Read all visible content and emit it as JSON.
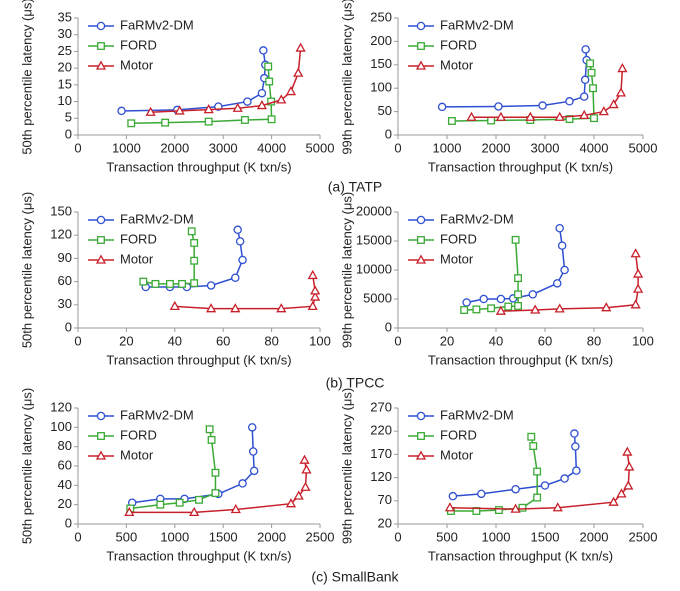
{
  "captions": [
    "(a) TATP",
    "(b) TPCC",
    "(c) SmallBank"
  ],
  "chart_data": [
    {
      "type": "line",
      "xlabel": "Transaction throughput (K txn/s)",
      "ylabel": "50th percentile latency (μs)",
      "xlim": [
        0,
        5000
      ],
      "xticks": [
        0,
        1000,
        2000,
        3000,
        4000,
        5000
      ],
      "ylim": [
        0,
        35
      ],
      "yticks": [
        0,
        5,
        10,
        15,
        20,
        25,
        30,
        35
      ],
      "legend": "upper left",
      "series": [
        {
          "name": "FaRMv2-DM",
          "color": "#2e4fd0",
          "marker": "circle",
          "x": [
            900,
            2050,
            2900,
            3500,
            3800,
            3850,
            3870,
            3830
          ],
          "values": [
            7.2,
            7.5,
            8.5,
            10,
            12.5,
            17,
            21,
            25.3
          ]
        },
        {
          "name": "FORD",
          "color": "#3aaa35",
          "marker": "square",
          "x": [
            1100,
            1800,
            2700,
            3450,
            4000,
            3990,
            3950,
            3930
          ],
          "values": [
            3.5,
            3.7,
            4,
            4.5,
            4.7,
            10,
            16,
            20.5
          ]
        },
        {
          "name": "Motor",
          "color": "#c8202a",
          "marker": "triangle",
          "x": [
            1500,
            2100,
            2700,
            3300,
            3800,
            4200,
            4400,
            4550,
            4600
          ],
          "values": [
            6.8,
            7.2,
            7.6,
            8,
            8.8,
            10.5,
            13,
            18.5,
            26
          ]
        }
      ]
    },
    {
      "type": "line",
      "xlabel": "Transaction throughput (K txn/s)",
      "ylabel": "99th percentile latency (μs)",
      "xlim": [
        0,
        5000
      ],
      "xticks": [
        0,
        1000,
        2000,
        3000,
        4000,
        5000
      ],
      "ylim": [
        0,
        250
      ],
      "yticks": [
        0,
        50,
        100,
        150,
        200,
        250
      ],
      "legend": "upper left",
      "series": [
        {
          "name": "FaRMv2-DM",
          "color": "#2e4fd0",
          "marker": "circle",
          "x": [
            900,
            2050,
            2950,
            3500,
            3800,
            3820,
            3850,
            3830
          ],
          "values": [
            60,
            61,
            63,
            72,
            82,
            118,
            160,
            183
          ]
        },
        {
          "name": "FORD",
          "color": "#3aaa35",
          "marker": "square",
          "x": [
            1100,
            1900,
            2700,
            3500,
            4000,
            3980,
            3950,
            3920
          ],
          "values": [
            30,
            31,
            32,
            34,
            36,
            100,
            133,
            153
          ]
        },
        {
          "name": "Motor",
          "color": "#c8202a",
          "marker": "triangle",
          "x": [
            1500,
            2100,
            2700,
            3300,
            3800,
            4200,
            4400,
            4550,
            4580
          ],
          "values": [
            38,
            38,
            38,
            38,
            42,
            50,
            65,
            90,
            142
          ]
        }
      ]
    },
    {
      "type": "line",
      "xlabel": "Transaction throughput (K txn/s)",
      "ylabel": "50th percentile latency (μs)",
      "xlim": [
        0,
        100
      ],
      "xticks": [
        0,
        20,
        40,
        60,
        80,
        100
      ],
      "ylim": [
        0,
        150
      ],
      "yticks": [
        0,
        30,
        60,
        90,
        120,
        150
      ],
      "legend": "upper left",
      "series": [
        {
          "name": "FaRMv2-DM",
          "color": "#2e4fd0",
          "marker": "circle",
          "x": [
            28,
            38,
            45,
            55,
            65,
            68,
            67,
            66
          ],
          "values": [
            53,
            53,
            53,
            55,
            65,
            88,
            112,
            127
          ]
        },
        {
          "name": "FORD",
          "color": "#3aaa35",
          "marker": "square",
          "x": [
            27,
            32,
            38,
            43,
            48,
            48,
            48,
            47
          ],
          "values": [
            60,
            57,
            57,
            57,
            58,
            87,
            110,
            125
          ]
        },
        {
          "name": "Motor",
          "color": "#c8202a",
          "marker": "triangle",
          "x": [
            40,
            55,
            65,
            84,
            97,
            98,
            98,
            97
          ],
          "values": [
            28,
            25,
            25,
            25,
            28,
            40,
            48,
            68
          ]
        }
      ]
    },
    {
      "type": "line",
      "xlabel": "Transaction throughput (K txn/s)",
      "ylabel": "99th percentile latency (μs)",
      "xlim": [
        0,
        100
      ],
      "xticks": [
        0,
        20,
        40,
        60,
        80,
        100
      ],
      "ylim": [
        0,
        20000
      ],
      "yticks": [
        0,
        5000,
        10000,
        15000,
        20000
      ],
      "legend": "upper left",
      "series": [
        {
          "name": "FaRMv2-DM",
          "color": "#2e4fd0",
          "marker": "circle",
          "x": [
            28,
            35,
            42,
            47,
            55,
            65,
            68,
            67,
            66
          ],
          "values": [
            4400,
            5000,
            5000,
            5100,
            5800,
            7700,
            10000,
            14200,
            17200
          ]
        },
        {
          "name": "FORD",
          "color": "#3aaa35",
          "marker": "square",
          "x": [
            27,
            32,
            38,
            45,
            49,
            49,
            49,
            48
          ],
          "values": [
            3100,
            3200,
            3400,
            3700,
            3800,
            5800,
            8600,
            15200
          ]
        },
        {
          "name": "Motor",
          "color": "#c8202a",
          "marker": "triangle",
          "x": [
            42,
            56,
            66,
            85,
            97,
            98,
            98,
            97
          ],
          "values": [
            2900,
            3100,
            3300,
            3500,
            4000,
            6700,
            9300,
            12800
          ]
        }
      ]
    },
    {
      "type": "line",
      "xlabel": "Transaction throughput (K txn/s)",
      "ylabel": "50th percentile latency (μs)",
      "xlim": [
        0,
        2500
      ],
      "xticks": [
        0,
        500,
        1000,
        1500,
        2000,
        2500
      ],
      "ylim": [
        0,
        120
      ],
      "yticks": [
        0,
        20,
        40,
        60,
        80,
        100,
        120
      ],
      "legend": "upper left",
      "series": [
        {
          "name": "FaRMv2-DM",
          "color": "#2e4fd0",
          "marker": "circle",
          "x": [
            560,
            850,
            1100,
            1450,
            1700,
            1820,
            1810,
            1800
          ],
          "values": [
            22,
            26,
            26,
            31,
            42,
            55,
            75,
            100
          ]
        },
        {
          "name": "FORD",
          "color": "#3aaa35",
          "marker": "square",
          "x": [
            540,
            850,
            1050,
            1250,
            1420,
            1420,
            1380,
            1360
          ],
          "values": [
            16,
            20,
            22,
            25,
            32,
            53,
            87,
            98
          ]
        },
        {
          "name": "Motor",
          "color": "#c8202a",
          "marker": "triangle",
          "x": [
            530,
            1200,
            1630,
            2200,
            2280,
            2350,
            2360,
            2340
          ],
          "values": [
            12,
            12,
            15,
            21,
            29,
            38,
            56,
            66
          ]
        }
      ]
    },
    {
      "type": "line",
      "xlabel": "Transaction throughput (K txn/s)",
      "ylabel": "99th percentile latency (μs)",
      "xlim": [
        0,
        2500
      ],
      "xticks": [
        0,
        500,
        1000,
        1500,
        2000,
        2500
      ],
      "ylim": [
        20,
        270
      ],
      "yticks": [
        20,
        70,
        120,
        170,
        220,
        270
      ],
      "legend": "upper left",
      "series": [
        {
          "name": "FaRMv2-DM",
          "color": "#2e4fd0",
          "marker": "circle",
          "x": [
            560,
            850,
            1200,
            1500,
            1700,
            1820,
            1810,
            1800
          ],
          "values": [
            80,
            85,
            95,
            103,
            118,
            135,
            187,
            215
          ]
        },
        {
          "name": "FORD",
          "color": "#3aaa35",
          "marker": "square",
          "x": [
            540,
            800,
            1030,
            1270,
            1420,
            1420,
            1380,
            1360
          ],
          "values": [
            48,
            48,
            50,
            55,
            77,
            133,
            188,
            208
          ]
        },
        {
          "name": "Motor",
          "color": "#c8202a",
          "marker": "triangle",
          "x": [
            530,
            1200,
            1630,
            2200,
            2280,
            2350,
            2360,
            2340
          ],
          "values": [
            55,
            52,
            55,
            67,
            85,
            102,
            143,
            175
          ]
        }
      ]
    }
  ]
}
